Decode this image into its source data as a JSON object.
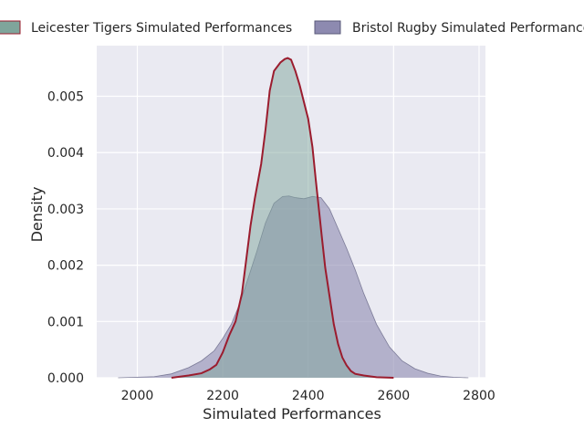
{
  "chart_data": {
    "type": "area",
    "title": "",
    "xlabel": "Simulated Performances",
    "ylabel": "Density",
    "xlim": [
      1905,
      2815
    ],
    "ylim": [
      0,
      0.0059
    ],
    "x_ticks": [
      2000,
      2200,
      2400,
      2600,
      2800
    ],
    "y_ticks": [
      0.0,
      0.001,
      0.002,
      0.003,
      0.004,
      0.005
    ],
    "x_tick_labels": [
      "2000",
      "2200",
      "2400",
      "2600",
      "2800"
    ],
    "y_tick_labels": [
      "0.000",
      "0.001",
      "0.002",
      "0.003",
      "0.004",
      "0.005"
    ],
    "grid": true,
    "legend_position": "top",
    "series": [
      {
        "name": "Leicester Tigers Simulated Performances",
        "fill_color": "#7fa59b",
        "line_color": "#9b1c2e",
        "points": [
          [
            2080,
            0.0
          ],
          [
            2120,
            4e-05
          ],
          [
            2150,
            8e-05
          ],
          [
            2170,
            0.00015
          ],
          [
            2185,
            0.00023
          ],
          [
            2200,
            0.00045
          ],
          [
            2215,
            0.00075
          ],
          [
            2230,
            0.001
          ],
          [
            2245,
            0.0015
          ],
          [
            2255,
            0.0021
          ],
          [
            2265,
            0.0027
          ],
          [
            2275,
            0.00318
          ],
          [
            2290,
            0.0038
          ],
          [
            2300,
            0.0044
          ],
          [
            2310,
            0.0051
          ],
          [
            2320,
            0.00545
          ],
          [
            2335,
            0.0056
          ],
          [
            2345,
            0.00566
          ],
          [
            2352,
            0.00568
          ],
          [
            2360,
            0.00565
          ],
          [
            2370,
            0.00545
          ],
          [
            2380,
            0.0052
          ],
          [
            2390,
            0.0049
          ],
          [
            2400,
            0.0046
          ],
          [
            2410,
            0.0041
          ],
          [
            2418,
            0.0035
          ],
          [
            2425,
            0.003
          ],
          [
            2432,
            0.0025
          ],
          [
            2440,
            0.00195
          ],
          [
            2450,
            0.00145
          ],
          [
            2460,
            0.00095
          ],
          [
            2470,
            0.0006
          ],
          [
            2480,
            0.00036
          ],
          [
            2490,
            0.00022
          ],
          [
            2500,
            0.00012
          ],
          [
            2510,
            7e-05
          ],
          [
            2530,
            4e-05
          ],
          [
            2560,
            1e-05
          ],
          [
            2600,
            0.0
          ]
        ]
      },
      {
        "name": "Bristol Rugby Simulated Performances",
        "fill_color": "#8d8ab0",
        "line_color": "#5a5a7a",
        "points": [
          [
            1955,
            0.0
          ],
          [
            2000,
            1e-05
          ],
          [
            2040,
            2e-05
          ],
          [
            2080,
            7e-05
          ],
          [
            2120,
            0.00018
          ],
          [
            2150,
            0.0003
          ],
          [
            2180,
            0.00048
          ],
          [
            2200,
            0.0007
          ],
          [
            2220,
            0.00095
          ],
          [
            2240,
            0.00132
          ],
          [
            2260,
            0.00178
          ],
          [
            2280,
            0.00225
          ],
          [
            2300,
            0.00275
          ],
          [
            2320,
            0.0031
          ],
          [
            2340,
            0.00322
          ],
          [
            2355,
            0.00323
          ],
          [
            2370,
            0.0032
          ],
          [
            2390,
            0.00318
          ],
          [
            2410,
            0.00322
          ],
          [
            2430,
            0.0032
          ],
          [
            2450,
            0.003
          ],
          [
            2470,
            0.00265
          ],
          [
            2490,
            0.0023
          ],
          [
            2510,
            0.00192
          ],
          [
            2530,
            0.0015
          ],
          [
            2560,
            0.00095
          ],
          [
            2590,
            0.00055
          ],
          [
            2620,
            0.0003
          ],
          [
            2650,
            0.00016
          ],
          [
            2680,
            8e-05
          ],
          [
            2710,
            3e-05
          ],
          [
            2740,
            1e-05
          ],
          [
            2775,
            0.0
          ]
        ]
      }
    ]
  }
}
